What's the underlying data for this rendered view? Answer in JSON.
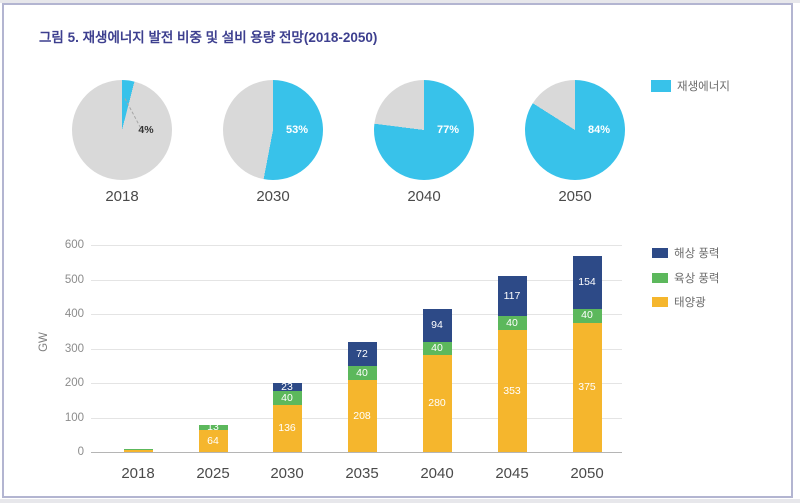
{
  "figure_title": "그림 5. 재생에너지 발전 비중 및 설비 용량 전망(2018-2050)",
  "colors": {
    "renewable_cyan": "#38c2ea",
    "pie_gray": "#d9d9d9",
    "offshore_navy": "#2d4a87",
    "onshore_green": "#5cb85c",
    "solar_yellow": "#f5b62d",
    "title_indigo": "#3d3f8f",
    "page_border": "#b3b5d1"
  },
  "chart_data": [
    {
      "type": "pie",
      "legend": [
        "재생에너지"
      ],
      "pies": [
        {
          "year": "2018",
          "value_pct": 4,
          "label": "4%"
        },
        {
          "year": "2030",
          "value_pct": 53,
          "label": "53%"
        },
        {
          "year": "2040",
          "value_pct": 77,
          "label": "77%"
        },
        {
          "year": "2050",
          "value_pct": 84,
          "label": "84%"
        }
      ]
    },
    {
      "type": "bar",
      "stacked": true,
      "categories": [
        "2018",
        "2025",
        "2030",
        "2035",
        "2040",
        "2045",
        "2050"
      ],
      "series": [
        {
          "name": "태양광",
          "color_key": "solar_yellow",
          "values": [
            6,
            64,
            136,
            208,
            280,
            353,
            375
          ]
        },
        {
          "name": "육상 풍력",
          "color_key": "onshore_green",
          "values": [
            2,
            13,
            40,
            40,
            40,
            40,
            40
          ]
        },
        {
          "name": "해상 풍력",
          "color_key": "offshore_navy",
          "values": [
            0,
            0,
            23,
            72,
            94,
            117,
            154
          ]
        }
      ],
      "ylabel": "GW",
      "yticks": [
        0,
        100,
        200,
        300,
        400,
        500,
        600
      ],
      "ylim": [
        0,
        600
      ],
      "label_min_value": 13,
      "legend_position": "right"
    }
  ]
}
